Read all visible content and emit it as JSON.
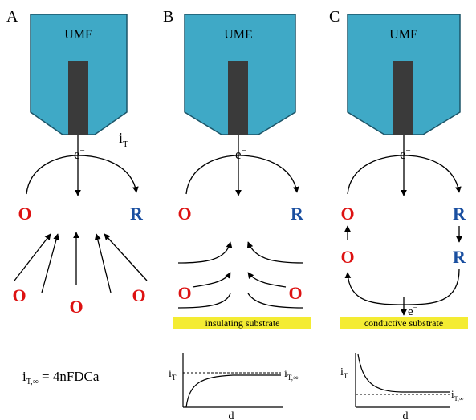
{
  "panels": [
    {
      "letter": "A",
      "electrode": "UME",
      "tip_current": "i",
      "tip_current_sub": "T",
      "electron": "e",
      "electron_sup": "−",
      "ox": "O",
      "red": "R"
    },
    {
      "letter": "B",
      "electrode": "UME",
      "electron": "e",
      "electron_sup": "−",
      "ox": "O",
      "red": "R",
      "substrate": "insulating substrate"
    },
    {
      "letter": "C",
      "electrode": "UME",
      "electron": "e",
      "electron_sup": "−",
      "ox": "O",
      "red": "R",
      "substrate": "conductive substrate"
    }
  ],
  "equation": {
    "i": "i",
    "sub": "T,∞",
    "rhs": " = 4nFDCa"
  },
  "graph_b": {
    "y_label": "i",
    "y_sub": "T",
    "ref_label": "i",
    "ref_sub": "T,∞",
    "x_label": "d"
  },
  "graph_c": {
    "y_label": "i",
    "y_sub": "T",
    "ref_label": "i",
    "ref_sub": "T,∞",
    "x_label": "d"
  },
  "colors": {
    "electrode": "#3fa9c6",
    "core": "#3a3a3a",
    "oxidized": "#dd1111",
    "reduced": "#1a4fa0",
    "substrate": "#f4ec33"
  }
}
